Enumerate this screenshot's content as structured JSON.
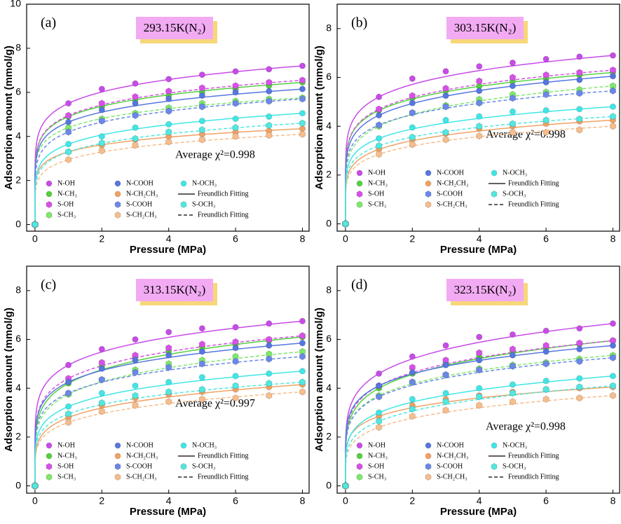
{
  "chart_data": [
    {
      "type": "scatter",
      "panel": "(a)",
      "title": "293.15K(N₂)",
      "annotation": "Average χ²=0.998",
      "xlabel": "Pressure (MPa)",
      "ylabel": "Adsorption amount (mmol/g)",
      "x": [
        0,
        1,
        2,
        3,
        4,
        5,
        6,
        7,
        8
      ],
      "xlim": [
        -0.25,
        8.2
      ],
      "xticks": [
        0,
        2,
        4,
        6,
        8
      ],
      "ylim": [
        -0.3,
        10
      ],
      "yticks": [
        0,
        2,
        4,
        6,
        8,
        10
      ],
      "fit_legend": [
        {
          "label": "Freundlich Fitting",
          "dashed": false
        },
        {
          "label": "Freundlich Fitting",
          "dashed": true
        }
      ],
      "series": [
        {
          "name": "N-OH",
          "color": "#c84be8",
          "marker": "circle",
          "dashed": false,
          "values": [
            0,
            5.5,
            6.15,
            6.4,
            6.6,
            6.8,
            6.95,
            7.05,
            7.2
          ]
        },
        {
          "name": "N-CH₃",
          "color": "#52d13e",
          "marker": "circle",
          "dashed": false,
          "values": [
            0,
            4.9,
            5.35,
            5.65,
            5.85,
            6.0,
            6.15,
            6.3,
            6.45
          ]
        },
        {
          "name": "S-OH",
          "color": "#d850e8",
          "marker": "hexagon",
          "dashed": true,
          "values": [
            0,
            4.95,
            5.5,
            5.8,
            6.05,
            6.2,
            6.3,
            6.45,
            6.55
          ]
        },
        {
          "name": "S-CH₃",
          "color": "#7ee86a",
          "marker": "hexagon",
          "dashed": true,
          "values": [
            0,
            4.4,
            4.8,
            5.05,
            5.3,
            5.5,
            5.6,
            5.7,
            5.75
          ]
        },
        {
          "name": "N-COOH",
          "color": "#5676e0",
          "marker": "circle",
          "dashed": false,
          "values": [
            0,
            4.65,
            5.2,
            5.5,
            5.7,
            5.85,
            6.0,
            6.05,
            6.15
          ]
        },
        {
          "name": "N-CH₂CH₃",
          "color": "#f0a263",
          "marker": "circle",
          "dashed": false,
          "values": [
            0,
            3.3,
            3.6,
            3.85,
            4.0,
            4.1,
            4.2,
            4.25,
            4.35
          ]
        },
        {
          "name": "S-COOH",
          "color": "#6a88e8",
          "marker": "hexagon",
          "dashed": true,
          "values": [
            0,
            4.2,
            4.7,
            4.95,
            5.15,
            5.35,
            5.5,
            5.6,
            5.7
          ]
        },
        {
          "name": "S-CH₂CH₃",
          "color": "#f7bd8a",
          "marker": "hexagon",
          "dashed": true,
          "values": [
            0,
            2.95,
            3.35,
            3.6,
            3.75,
            3.85,
            4.0,
            4.05,
            4.1
          ]
        },
        {
          "name": "N-OCH₃",
          "color": "#3fe6e6",
          "marker": "circle",
          "dashed": false,
          "values": [
            0,
            3.65,
            4.0,
            4.4,
            4.55,
            4.7,
            4.8,
            4.9,
            5.05
          ]
        },
        {
          "name": "S-OCH₃",
          "color": "#50e8e0",
          "marker": "hexagon",
          "dashed": true,
          "values": [
            0,
            3.3,
            3.7,
            3.9,
            4.2,
            4.3,
            4.4,
            4.5,
            4.6
          ]
        }
      ]
    },
    {
      "type": "scatter",
      "panel": "(b)",
      "title": "303.15K(N₂)",
      "annotation": "Average χ²=0.998",
      "xlabel": "Pressure (MPa)",
      "ylabel": "Adsorption amount (mmol/g)",
      "x": [
        0,
        1,
        2,
        3,
        4,
        5,
        6,
        7,
        8
      ],
      "xlim": [
        -0.25,
        8.2
      ],
      "xticks": [
        0,
        2,
        4,
        6,
        8
      ],
      "ylim": [
        -0.3,
        9
      ],
      "yticks": [
        0,
        2,
        4,
        6,
        8
      ],
      "fit_legend": [
        {
          "label": "Freundlich Fitting",
          "dashed": false
        },
        {
          "label": "Freundlich Fitting",
          "dashed": true
        }
      ],
      "series": [
        {
          "name": "N-OH",
          "color": "#c84be8",
          "marker": "circle",
          "dashed": false,
          "values": [
            0,
            5.2,
            5.95,
            6.25,
            6.45,
            6.6,
            6.75,
            6.85,
            6.9
          ]
        },
        {
          "name": "N-CH₃",
          "color": "#52d13e",
          "marker": "circle",
          "dashed": false,
          "values": [
            0,
            4.65,
            5.15,
            5.45,
            5.65,
            5.85,
            5.95,
            6.1,
            6.2
          ]
        },
        {
          "name": "S-OH",
          "color": "#d850e8",
          "marker": "hexagon",
          "dashed": true,
          "values": [
            0,
            4.7,
            5.25,
            5.55,
            5.85,
            6.0,
            6.1,
            6.2,
            6.3
          ]
        },
        {
          "name": "S-CH₃",
          "color": "#7ee86a",
          "marker": "hexagon",
          "dashed": true,
          "values": [
            0,
            4.0,
            4.55,
            4.85,
            5.1,
            5.3,
            5.4,
            5.5,
            5.65
          ]
        },
        {
          "name": "N-COOH",
          "color": "#5676e0",
          "marker": "circle",
          "dashed": false,
          "values": [
            0,
            4.45,
            4.95,
            5.25,
            5.45,
            5.65,
            5.8,
            5.9,
            6.05
          ]
        },
        {
          "name": "N-CH₂CH₃",
          "color": "#f0a263",
          "marker": "circle",
          "dashed": false,
          "values": [
            0,
            3.05,
            3.45,
            3.7,
            3.9,
            4.0,
            4.1,
            4.2,
            4.25
          ]
        },
        {
          "name": "S-COOH",
          "color": "#6a88e8",
          "marker": "hexagon",
          "dashed": true,
          "values": [
            0,
            4.05,
            4.55,
            4.8,
            4.95,
            5.15,
            5.3,
            5.35,
            5.45
          ]
        },
        {
          "name": "S-CH₂CH₃",
          "color": "#f7bd8a",
          "marker": "hexagon",
          "dashed": true,
          "values": [
            0,
            2.85,
            3.25,
            3.45,
            3.6,
            3.75,
            3.75,
            3.85,
            4.0
          ]
        },
        {
          "name": "N-OCH₃",
          "color": "#3fe6e6",
          "marker": "circle",
          "dashed": false,
          "values": [
            0,
            3.5,
            3.95,
            4.25,
            4.4,
            4.6,
            4.65,
            4.7,
            4.8
          ]
        },
        {
          "name": "S-OCH₃",
          "color": "#50e8e0",
          "marker": "hexagon",
          "dashed": true,
          "values": [
            0,
            3.2,
            3.55,
            3.75,
            4.0,
            4.1,
            4.25,
            4.3,
            4.4
          ]
        }
      ]
    },
    {
      "type": "scatter",
      "panel": "(c)",
      "title": "313.15K(N₂)",
      "annotation": "Average χ²=0.997",
      "xlabel": "Pressure (MPa)",
      "ylabel": "Adsorption amount (mmol/g)",
      "x": [
        0,
        1,
        2,
        3,
        4,
        5,
        6,
        7,
        8
      ],
      "xlim": [
        -0.25,
        8.2
      ],
      "xticks": [
        0,
        2,
        4,
        6,
        8
      ],
      "ylim": [
        -0.3,
        9
      ],
      "yticks": [
        0,
        2,
        4,
        6,
        8
      ],
      "fit_legend": [
        {
          "label": "Freundlich Fitting",
          "dashed": false
        },
        {
          "label": "Freundlich Fitting",
          "dashed": true
        }
      ],
      "series": [
        {
          "name": "N-OH",
          "color": "#c84be8",
          "marker": "circle",
          "dashed": false,
          "values": [
            0,
            4.95,
            5.6,
            6.0,
            6.3,
            6.45,
            6.5,
            6.65,
            6.75
          ]
        },
        {
          "name": "N-CH₃",
          "color": "#52d13e",
          "marker": "circle",
          "dashed": false,
          "values": [
            0,
            4.2,
            4.9,
            5.3,
            5.5,
            5.7,
            5.8,
            5.95,
            6.1
          ]
        },
        {
          "name": "S-OH",
          "color": "#d850e8",
          "marker": "hexagon",
          "dashed": true,
          "values": [
            0,
            4.4,
            5.05,
            5.35,
            5.65,
            5.8,
            5.9,
            6.0,
            6.15
          ]
        },
        {
          "name": "S-CH₃",
          "color": "#7ee86a",
          "marker": "hexagon",
          "dashed": true,
          "values": [
            0,
            3.75,
            4.35,
            4.75,
            5.0,
            5.15,
            5.3,
            5.4,
            5.5
          ]
        },
        {
          "name": "N-COOH",
          "color": "#5676e0",
          "marker": "circle",
          "dashed": false,
          "values": [
            0,
            4.25,
            4.8,
            5.15,
            5.35,
            5.5,
            5.65,
            5.75,
            5.85
          ]
        },
        {
          "name": "N-CH₂CH₃",
          "color": "#f0a263",
          "marker": "circle",
          "dashed": false,
          "values": [
            0,
            2.8,
            3.3,
            3.6,
            3.75,
            3.85,
            3.95,
            4.05,
            4.15
          ]
        },
        {
          "name": "S-COOH",
          "color": "#6a88e8",
          "marker": "hexagon",
          "dashed": true,
          "values": [
            0,
            3.8,
            4.35,
            4.65,
            4.85,
            5.0,
            5.1,
            5.2,
            5.3
          ]
        },
        {
          "name": "S-CH₂CH₃",
          "color": "#f7bd8a",
          "marker": "hexagon",
          "dashed": true,
          "values": [
            0,
            2.6,
            3.05,
            3.3,
            3.45,
            3.55,
            3.6,
            3.7,
            3.85
          ]
        },
        {
          "name": "N-OCH₃",
          "color": "#3fe6e6",
          "marker": "circle",
          "dashed": false,
          "values": [
            0,
            3.25,
            3.8,
            4.1,
            4.25,
            4.45,
            4.5,
            4.6,
            4.7
          ]
        },
        {
          "name": "S-OCH₃",
          "color": "#50e8e0",
          "marker": "hexagon",
          "dashed": true,
          "values": [
            0,
            2.95,
            3.4,
            3.7,
            3.85,
            3.95,
            4.1,
            4.2,
            4.25
          ]
        }
      ]
    },
    {
      "type": "scatter",
      "panel": "(d)",
      "title": "323.15K(N₂)",
      "annotation": "Average χ²=0.998",
      "xlabel": "Pressure (MPa)",
      "ylabel": "Adsorption amount (mmol/g)",
      "x": [
        0,
        1,
        2,
        3,
        4,
        5,
        6,
        7,
        8
      ],
      "xlim": [
        -0.25,
        8.2
      ],
      "xticks": [
        0,
        2,
        4,
        6,
        8
      ],
      "ylim": [
        -0.3,
        9
      ],
      "yticks": [
        0,
        2,
        4,
        6,
        8
      ],
      "fit_legend": [
        {
          "label": "Freundlich Fitting",
          "dashed": false
        },
        {
          "label": "Freundlich Fitting",
          "dashed": true
        }
      ],
      "series": [
        {
          "name": "N-OH",
          "color": "#c84be8",
          "marker": "circle",
          "dashed": false,
          "values": [
            0,
            4.6,
            5.3,
            5.75,
            6.1,
            6.2,
            6.35,
            6.45,
            6.65
          ]
        },
        {
          "name": "N-CH₃",
          "color": "#52d13e",
          "marker": "circle",
          "dashed": false,
          "values": [
            0,
            4.0,
            4.6,
            5.0,
            5.3,
            5.5,
            5.65,
            5.8,
            5.95
          ]
        },
        {
          "name": "S-OH",
          "color": "#d850e8",
          "marker": "hexagon",
          "dashed": true,
          "values": [
            0,
            4.1,
            4.85,
            5.15,
            5.45,
            5.6,
            5.75,
            5.85,
            5.95
          ]
        },
        {
          "name": "S-CH₃",
          "color": "#7ee86a",
          "marker": "hexagon",
          "dashed": true,
          "values": [
            0,
            3.7,
            4.25,
            4.55,
            4.8,
            4.95,
            5.05,
            5.2,
            5.35
          ]
        },
        {
          "name": "N-COOH",
          "color": "#5676e0",
          "marker": "circle",
          "dashed": false,
          "values": [
            0,
            4.1,
            4.65,
            4.95,
            5.15,
            5.35,
            5.5,
            5.6,
            5.75
          ]
        },
        {
          "name": "N-CH₂CH₃",
          "color": "#f0a263",
          "marker": "circle",
          "dashed": false,
          "values": [
            0,
            2.85,
            3.3,
            3.55,
            3.7,
            3.85,
            3.95,
            4.0,
            4.05
          ]
        },
        {
          "name": "S-COOH",
          "color": "#6a88e8",
          "marker": "hexagon",
          "dashed": true,
          "values": [
            0,
            3.65,
            4.25,
            4.55,
            4.75,
            4.9,
            5.0,
            5.1,
            5.25
          ]
        },
        {
          "name": "S-CH₂CH₃",
          "color": "#f7bd8a",
          "marker": "hexagon",
          "dashed": true,
          "values": [
            0,
            2.4,
            2.85,
            3.1,
            3.3,
            3.45,
            3.55,
            3.6,
            3.7
          ]
        },
        {
          "name": "N-OCH₃",
          "color": "#3fe6e6",
          "marker": "circle",
          "dashed": false,
          "values": [
            0,
            3.0,
            3.55,
            3.8,
            4.0,
            4.15,
            4.3,
            4.4,
            4.5
          ]
        },
        {
          "name": "S-OCH₃",
          "color": "#50e8e0",
          "marker": "hexagon",
          "dashed": true,
          "values": [
            0,
            2.65,
            3.15,
            3.45,
            3.65,
            3.8,
            3.95,
            4.05,
            4.1
          ]
        }
      ]
    }
  ]
}
